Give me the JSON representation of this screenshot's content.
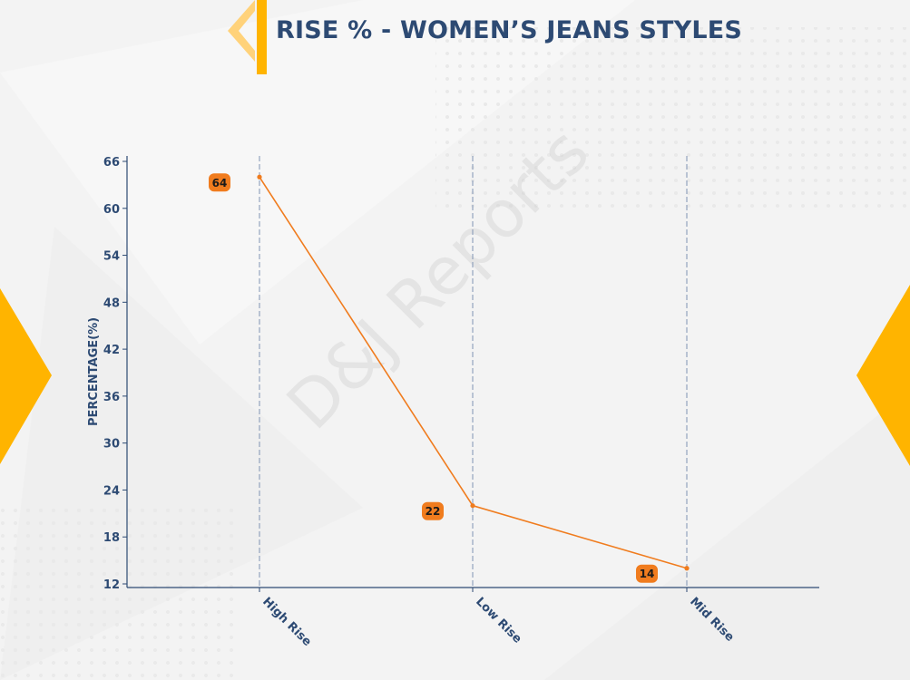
{
  "title": "RISE % - WOMEN’S JEANS STYLES",
  "watermark": "D&J Reports",
  "colors": {
    "line": "#f07c1e",
    "label_bg": "#f07c1e",
    "axis": "#2d4a73",
    "accent_yellow": "#ffb400",
    "title": "#2d4a73"
  },
  "chart_data": {
    "type": "line",
    "categories": [
      "High Rise",
      "Low Rise",
      "Mid Rise"
    ],
    "values": [
      64,
      22,
      14
    ],
    "data_labels": [
      "64",
      "22",
      "14"
    ],
    "ylabel": "PERCENTAGE(%)",
    "xlabel": "",
    "ylim": [
      12,
      66
    ],
    "yticks": [
      12,
      18,
      24,
      30,
      36,
      42,
      48,
      54,
      60,
      66
    ],
    "grid": "vertical-dashed",
    "legend": "none"
  }
}
